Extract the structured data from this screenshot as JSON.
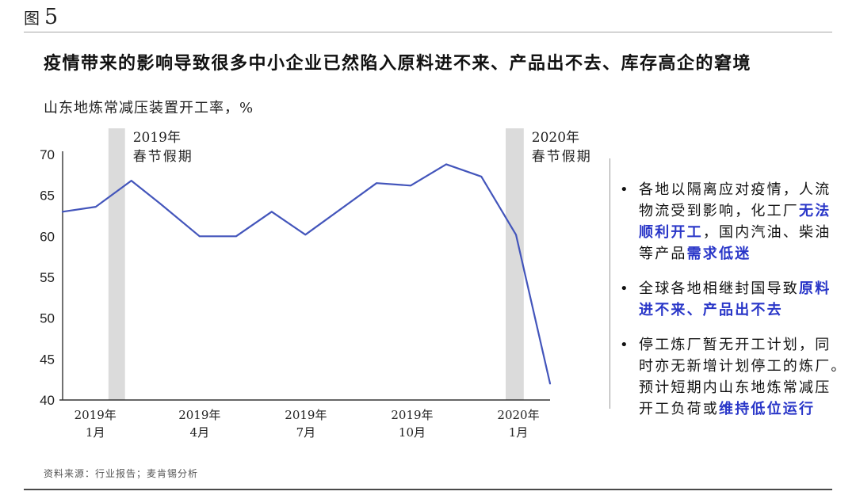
{
  "figure": {
    "label": "图",
    "number": "5"
  },
  "title": "疫情带来的影响导致很多中小企业已然陷入原料进不来、产品出不去、库存高企的窘境",
  "subtitle": "山东地炼常减压装置开工率，%",
  "source": "资料来源：行业报告；麦肯锡分析",
  "bullet_marker": "•",
  "colors": {
    "line": "#4355bb",
    "band": "#dbdbdb",
    "highlight": "#2936c8",
    "axis": "#333333",
    "tick_text": "#222222",
    "annotation_text": "#222222"
  },
  "chart_data": {
    "type": "line",
    "title": "山东地炼常减压装置开工率，%",
    "xlabel": "",
    "ylabel": "开工率 %",
    "ylim": [
      40,
      70
    ],
    "yticks": [
      40,
      45,
      50,
      55,
      60,
      65,
      70
    ],
    "grid": false,
    "legend": "none",
    "x_ticks": [
      {
        "frac": 0.067,
        "line1": "2019年",
        "line2": "1月"
      },
      {
        "frac": 0.281,
        "line1": "2019年",
        "line2": "4月"
      },
      {
        "frac": 0.499,
        "line1": "2019年",
        "line2": "7月"
      },
      {
        "frac": 0.717,
        "line1": "2019年",
        "line2": "10月"
      },
      {
        "frac": 0.935,
        "line1": "2020年",
        "line2": "1月"
      }
    ],
    "bands": [
      {
        "from": 0.094,
        "to": 0.128,
        "label_line1": "2019年",
        "label_line2": "春节假期"
      },
      {
        "from": 0.909,
        "to": 0.946,
        "label_line1": "2020年",
        "label_line2": "春节假期"
      }
    ],
    "series": [
      {
        "name": "山东地炼常减压装置开工率",
        "points": [
          {
            "x_frac": 0.0,
            "month": "2018-12",
            "value": 63.0
          },
          {
            "x_frac": 0.068,
            "month": "2019-01",
            "value": 63.6
          },
          {
            "x_frac": 0.141,
            "month": "2019-02",
            "value": 66.8
          },
          {
            "x_frac": 0.2,
            "month": "2019-03",
            "value": 64.0
          },
          {
            "x_frac": 0.281,
            "month": "2019-04",
            "value": 60.0
          },
          {
            "x_frac": 0.356,
            "month": "2019-05",
            "value": 60.0
          },
          {
            "x_frac": 0.429,
            "month": "2019-06",
            "value": 63.0
          },
          {
            "x_frac": 0.498,
            "month": "2019-07",
            "value": 60.2
          },
          {
            "x_frac": 0.644,
            "month": "2019-09",
            "value": 66.5
          },
          {
            "x_frac": 0.714,
            "month": "2019-10",
            "value": 66.2
          },
          {
            "x_frac": 0.787,
            "month": "2019-11",
            "value": 68.8
          },
          {
            "x_frac": 0.859,
            "month": "2019-12",
            "value": 67.3
          },
          {
            "x_frac": 0.93,
            "month": "2020-01",
            "value": 60.2
          },
          {
            "x_frac": 1.0,
            "month": "2020-02",
            "value": 42.0
          }
        ]
      }
    ]
  },
  "bullets": [
    {
      "segments": [
        {
          "text": "各地以隔离应对疫情，人流\n物流受到影响，化工厂",
          "hl": false
        },
        {
          "text": "无法\n顺利开工",
          "hl": true
        },
        {
          "text": "，国内汽油、柴油\n等产品",
          "hl": false
        },
        {
          "text": "需求低迷",
          "hl": true
        }
      ]
    },
    {
      "segments": [
        {
          "text": "全球各地相继封国导致",
          "hl": false
        },
        {
          "text": "原料\n进不来、产品出不去",
          "hl": true
        }
      ]
    },
    {
      "segments": [
        {
          "text": "停工炼厂暂无开工计划，同\n时亦无新增计划停工的炼厂。\n预计短期内山东地炼常减压\n开工负荷或",
          "hl": false
        },
        {
          "text": "维持低位运行",
          "hl": true
        }
      ]
    }
  ]
}
